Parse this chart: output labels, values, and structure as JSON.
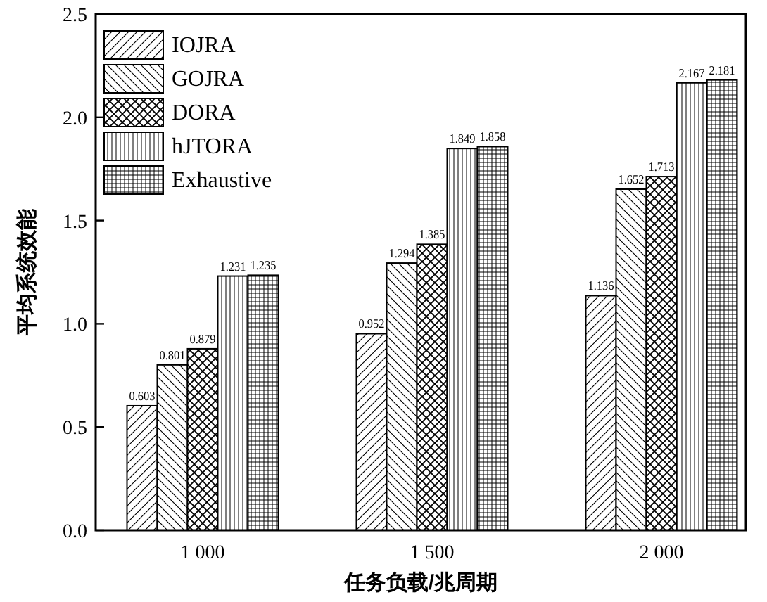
{
  "chart_data": {
    "type": "bar",
    "categories": [
      "1 000",
      "1 500",
      "2 000"
    ],
    "xlabel": "任务负载/兆周期",
    "ylabel": "平均系统效能",
    "series": [
      {
        "name": "IOJRA",
        "color": "#000000",
        "values": [
          0.603,
          0.952,
          1.136
        ]
      },
      {
        "name": "GOJRA",
        "color": "#000000",
        "values": [
          0.801,
          1.294,
          1.652
        ]
      },
      {
        "name": "DORA",
        "color": "#000000",
        "values": [
          0.879,
          1.385,
          1.713
        ]
      },
      {
        "name": "hJTORA",
        "color": "#000000",
        "values": [
          1.231,
          1.849,
          2.167
        ]
      },
      {
        "name": "Exhaustive",
        "color": "#000000",
        "values": [
          1.235,
          1.858,
          2.181
        ]
      }
    ],
    "ylim": [
      0,
      2.5
    ],
    "yticks": [
      {
        "value": 0,
        "label": "0.0"
      },
      {
        "value": 0.5,
        "label": "0.5"
      },
      {
        "value": 1,
        "label": "1.0"
      },
      {
        "value": 1.5,
        "label": "1.5"
      },
      {
        "value": 2,
        "label": "2.0"
      },
      {
        "value": 2.5,
        "label": "2.5"
      }
    ],
    "data_labels": true,
    "legend": "top left",
    "grid": false
  }
}
